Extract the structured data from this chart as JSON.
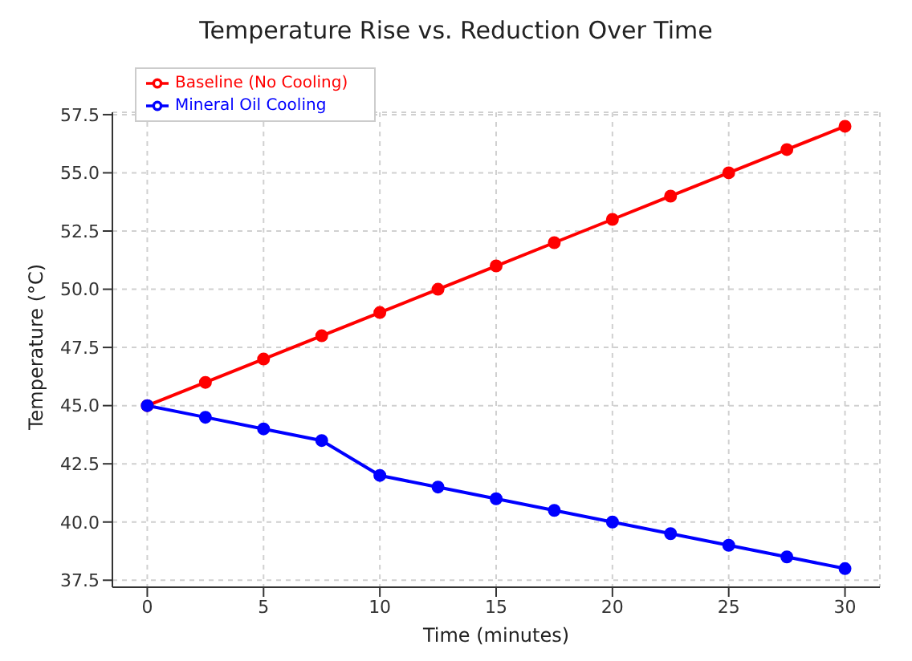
{
  "chart_data": {
    "type": "line",
    "title": "Temperature Rise vs. Reduction Over Time",
    "xlabel": "Time (minutes)",
    "ylabel": "Temperature (°C)",
    "x": [
      0,
      2.5,
      5,
      7.5,
      10,
      12.5,
      15,
      17.5,
      20,
      22.5,
      25,
      27.5,
      30
    ],
    "series": [
      {
        "name": "Baseline (No Cooling)",
        "color": "#ff0000",
        "values": [
          45,
          46,
          47,
          48,
          49,
          50,
          51,
          52,
          53,
          54,
          55,
          56,
          57
        ]
      },
      {
        "name": "Mineral Oil Cooling",
        "color": "#0000ff",
        "values": [
          45,
          44.5,
          44,
          43.5,
          42,
          41.5,
          41,
          40.5,
          40,
          39.5,
          39,
          38.5,
          38
        ]
      }
    ],
    "xlim": [
      -1.5,
      31.5
    ],
    "xticks": [
      0,
      5,
      10,
      15,
      20,
      25,
      30
    ],
    "ylim": [
      37.2,
      57.6
    ],
    "yticks": [
      37.5,
      {
        "value": 40,
        "label": "40.0"
      },
      42.5,
      {
        "value": 45,
        "label": "45.0"
      },
      47.5,
      {
        "value": 50,
        "label": "50.0"
      },
      52.5,
      {
        "value": 55,
        "label": "55.0"
      },
      57.5
    ],
    "grid": true,
    "legend": "top left",
    "marker": "circle",
    "line_style": "solid"
  }
}
